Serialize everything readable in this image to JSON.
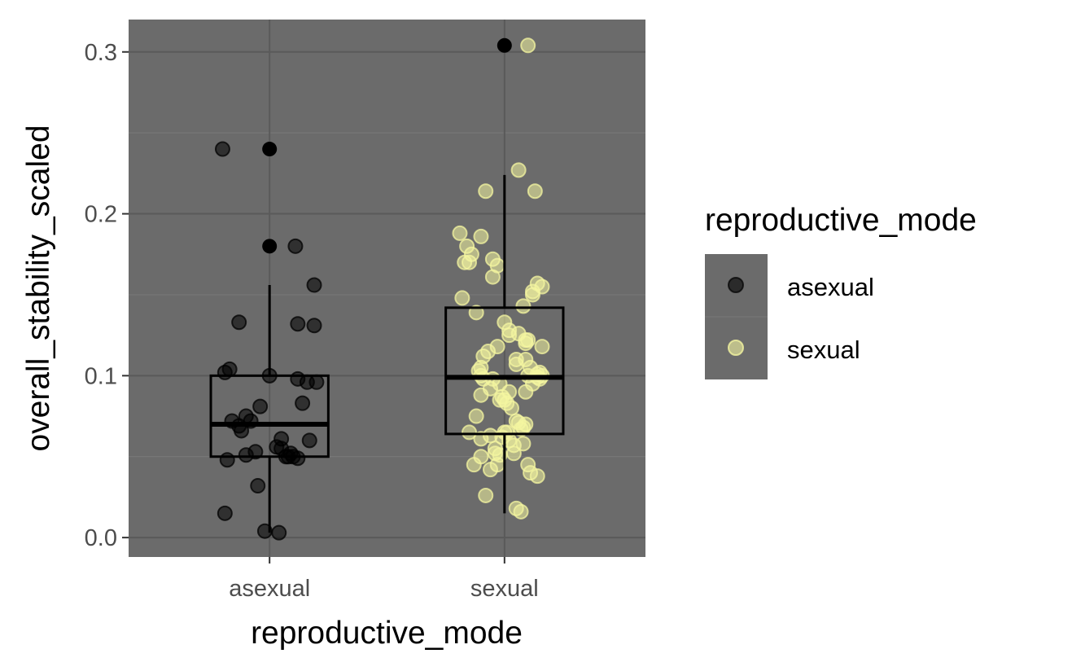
{
  "chart_data": {
    "type": "boxplot",
    "title": "",
    "xlabel": "reproductive_mode",
    "ylabel": "overall_stability_scaled",
    "categories": [
      "asexual",
      "sexual"
    ],
    "ylim": [
      -0.012,
      0.32
    ],
    "yticks": [
      0.0,
      0.1,
      0.2,
      0.3
    ],
    "ytick_labels": [
      "0.0",
      "0.1",
      "0.2",
      "0.3"
    ],
    "grid": true,
    "panel_background": "#6b6b6b",
    "legend": {
      "title": "reproductive_mode",
      "position": "right",
      "entries": [
        {
          "label": "asexual",
          "color": "#000000"
        },
        {
          "label": "sexual",
          "color": "#f4f5a0"
        }
      ]
    },
    "boxes": [
      {
        "category": "asexual",
        "whisker_low": 0.003,
        "q1": 0.05,
        "median": 0.07,
        "q3": 0.1,
        "whisker_high": 0.156,
        "outliers": [
          0.24,
          0.18
        ]
      },
      {
        "category": "sexual",
        "whisker_low": 0.015,
        "q1": 0.064,
        "median": 0.099,
        "q3": 0.142,
        "whisker_high": 0.224,
        "outliers": [
          0.304
        ]
      }
    ],
    "points": {
      "asexual": {
        "color": "#000000",
        "x_offset": [
          -0.2,
          -0.19,
          -0.17,
          -0.13,
          -0.1,
          -0.08,
          -0.16,
          -0.18,
          -0.1,
          -0.06,
          -0.12,
          -0.04,
          -0.13,
          -0.05,
          -0.19,
          0.11,
          0.12,
          0.19,
          0.12,
          0.19,
          0.16,
          0.14,
          0.2,
          0.17,
          0.05,
          0.03,
          0.09,
          0.1,
          0.12,
          0.07,
          0.08,
          0.05,
          0.04,
          0.0,
          -0.02
        ],
        "y": [
          0.24,
          0.102,
          0.104,
          0.133,
          0.075,
          0.072,
          0.072,
          0.048,
          0.051,
          0.053,
          0.066,
          0.081,
          0.069,
          0.032,
          0.015,
          0.18,
          0.132,
          0.156,
          0.098,
          0.131,
          0.096,
          0.083,
          0.096,
          0.06,
          0.061,
          0.056,
          0.052,
          0.05,
          0.049,
          0.05,
          0.05,
          0.055,
          0.003,
          0.1,
          0.004
        ]
      },
      "sexual": {
        "color": "#f4f5a0",
        "x_offset": [
          -0.08,
          0.06,
          -0.19,
          -0.16,
          -0.14,
          -0.17,
          -0.15,
          -0.1,
          -0.05,
          -0.05,
          -0.03,
          -0.18,
          -0.12,
          -0.1,
          -0.07,
          -0.03,
          -0.1,
          -0.05,
          -0.02,
          0.05,
          0.0,
          -0.12,
          -0.15,
          -0.06,
          -0.1,
          -0.04,
          0.05,
          0.03,
          0.01,
          0.09,
          0.1,
          0.09,
          0.11,
          0.16,
          0.1,
          0.14,
          0.12,
          0.12,
          0.06,
          0.02,
          0.12,
          0.15,
          0.09,
          -0.01,
          0.01,
          0.02,
          0.04,
          0.06,
          0.08,
          0.07,
          0.08,
          0.1,
          0.14,
          0.11,
          -0.04,
          -0.02,
          -0.03,
          -0.06,
          -0.08,
          -0.13,
          -0.1,
          0.0,
          -0.1,
          -0.06,
          -0.09,
          0.02,
          0.14,
          0.05,
          0.08,
          0.09,
          0.13,
          -0.09,
          -0.11,
          0.02,
          0.14,
          0.16,
          0.15,
          0.16,
          -0.02,
          0.0,
          0.04,
          -0.01,
          0.05,
          0.07,
          0.09,
          0.1
        ],
        "y": [
          0.214,
          0.227,
          0.188,
          0.18,
          0.175,
          0.17,
          0.17,
          0.186,
          0.172,
          0.161,
          0.168,
          0.148,
          0.139,
          0.105,
          0.115,
          0.118,
          0.1,
          0.098,
          0.085,
          0.11,
          0.133,
          0.075,
          0.065,
          0.063,
          0.05,
          0.055,
          0.072,
          0.08,
          0.065,
          0.12,
          0.122,
          0.11,
          0.105,
          0.118,
          0.1,
          0.157,
          0.152,
          0.15,
          0.126,
          0.125,
          0.095,
          0.102,
          0.09,
          0.087,
          0.083,
          0.06,
          0.057,
          0.071,
          0.068,
          0.067,
          0.058,
          0.045,
          0.038,
          0.04,
          0.052,
          0.051,
          0.045,
          0.042,
          0.026,
          0.045,
          0.061,
          0.065,
          0.088,
          0.092,
          0.098,
          0.09,
          0.099,
          0.107,
          0.143,
          0.122,
          0.214,
          0.112,
          0.103,
          0.128,
          0.101,
          0.155,
          0.098,
          0.1,
          0.095,
          0.085,
          0.052,
          0.062,
          0.018,
          0.016,
          0.07,
          0.304
        ]
      }
    }
  }
}
